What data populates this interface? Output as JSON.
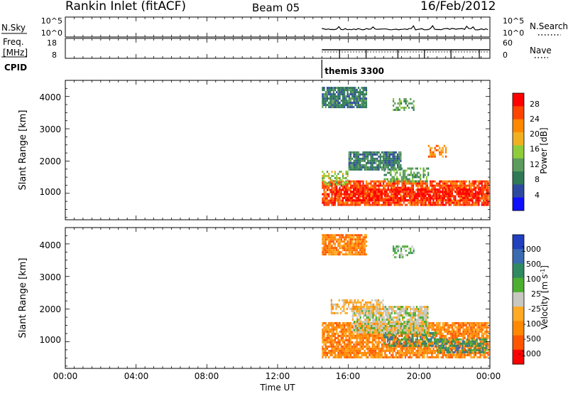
{
  "header": {
    "station": "Rankin Inlet (fitACF)",
    "beam": "Beam 05",
    "date": "16/Feb/2012"
  },
  "sky_panel": {
    "left_label": "N.Sky",
    "left_ticks": [
      "10^5",
      "10^0"
    ],
    "right_ticks": [
      "10^5",
      "10^0"
    ],
    "right_label": "N.Search",
    "right_legend_style": "dotted"
  },
  "freq_panel": {
    "left_label_1": "Freq.",
    "left_label_2": "[MHz]",
    "left_ticks": [
      "18",
      "8"
    ],
    "right_ticks": [
      "60",
      "0"
    ],
    "right_label": "Nave",
    "right_legend_style": "dotted"
  },
  "cpid": {
    "label": "CPID",
    "program": "themis 3300",
    "start_hour": 14.5
  },
  "x_axis": {
    "title": "Time UT",
    "ticks": [
      "00:00",
      "04:00",
      "08:00",
      "12:00",
      "16:00",
      "20:00",
      "00:00"
    ]
  },
  "colors": {
    "power": [
      "#1010ff",
      "#2e4aa0",
      "#2f7a55",
      "#5c9c5c",
      "#8fcc3a",
      "#f0b020",
      "#ff8800",
      "#ff4400",
      "#ff0000"
    ],
    "velocity": [
      "#ff0000",
      "#ff5500",
      "#ff8800",
      "#ffaa22",
      "#c8c8c0",
      "#4caf30",
      "#2f8a60",
      "#3a6ab0",
      "#2040c0"
    ],
    "grey": "#c8c8c0"
  },
  "chart_data": [
    {
      "type": "heatmap",
      "name": "power",
      "xlabel": "",
      "ylabel": "Slant Range [km]",
      "yticks": [
        "1000",
        "2000",
        "3000",
        "4000"
      ],
      "colorbar_label": "Power [dB]",
      "colorbar_ticks": [
        "28",
        "24",
        "20",
        "16",
        "12",
        "8",
        "4"
      ],
      "xlim_hours": [
        0,
        24
      ],
      "ylim_km": [
        180,
        4500
      ],
      "data_start_hour": 14.5,
      "regions": [
        {
          "x": [
            14.5,
            23.9
          ],
          "y": [
            650,
            1400
          ],
          "level": 7
        },
        {
          "x": [
            15.2,
            23.5
          ],
          "y": [
            800,
            1150
          ],
          "level": 8
        },
        {
          "x": [
            14.5,
            16.0
          ],
          "y": [
            1300,
            1700
          ],
          "level": 4
        },
        {
          "x": [
            16.0,
            19.0
          ],
          "y": [
            1750,
            2300
          ],
          "level": 2
        },
        {
          "x": [
            18.0,
            20.5
          ],
          "y": [
            1400,
            1800
          ],
          "level": 3
        },
        {
          "x": [
            20.5,
            21.5
          ],
          "y": [
            2150,
            2500
          ],
          "level": 6
        },
        {
          "x": [
            14.5,
            17.0
          ],
          "y": [
            3700,
            4300
          ],
          "level": 2
        },
        {
          "x": [
            18.5,
            19.7
          ],
          "y": [
            3600,
            3950
          ],
          "level": 3
        }
      ]
    },
    {
      "type": "heatmap",
      "name": "velocity",
      "xlabel": "Time UT",
      "ylabel": "Slant Range [km]",
      "yticks": [
        "1000",
        "2000",
        "3000",
        "4000"
      ],
      "colorbar_label": "Velocity [m s^-1]",
      "colorbar_ticks": [
        "1000",
        "500",
        "100",
        "25",
        "-25",
        "-100",
        "-500",
        "-1000"
      ],
      "xlim_hours": [
        0,
        24
      ],
      "ylim_km": [
        180,
        4500
      ],
      "data_start_hour": 14.5,
      "regions": [
        {
          "x": [
            14.5,
            23.9
          ],
          "y": [
            500,
            1600
          ],
          "level": 2
        },
        {
          "x": [
            18.0,
            21.0
          ],
          "y": [
            900,
            1300
          ],
          "level": 6
        },
        {
          "x": [
            16.2,
            20.5
          ],
          "y": [
            1300,
            2100
          ],
          "level": 4
        },
        {
          "x": [
            15.0,
            18.0
          ],
          "y": [
            1900,
            2300
          ],
          "level": 3
        },
        {
          "x": [
            21.0,
            23.8
          ],
          "y": [
            700,
            1100
          ],
          "level": 6
        },
        {
          "x": [
            14.5,
            17.0
          ],
          "y": [
            3700,
            4300
          ],
          "level": 2
        },
        {
          "x": [
            18.5,
            19.7
          ],
          "y": [
            3600,
            3950
          ],
          "level": 5
        }
      ]
    }
  ]
}
